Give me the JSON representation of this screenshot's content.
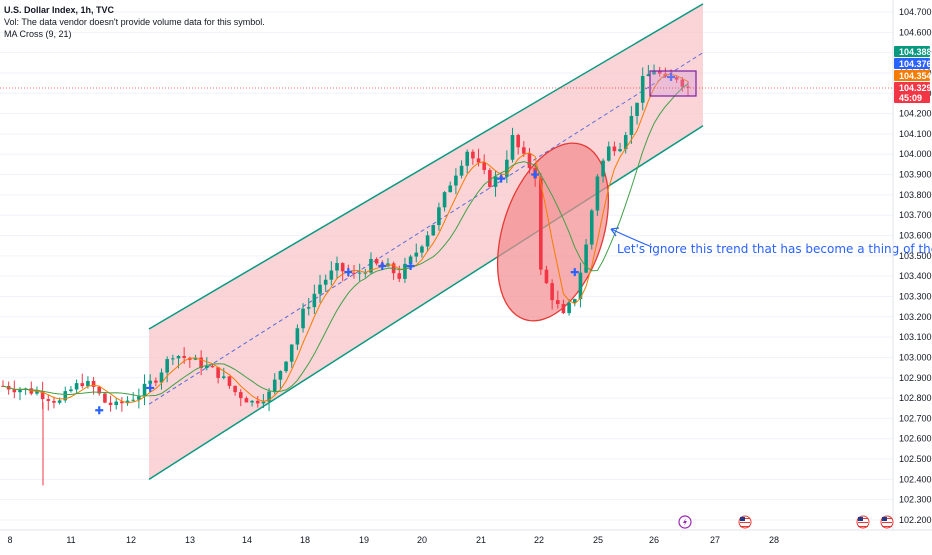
{
  "legend": {
    "symbol": "U.S. Dollar Index, 1h, TVC",
    "volume_note": "Vol: The data vendor doesn't provide volume data for this symbol.",
    "indicator": "MA Cross (9, 21)"
  },
  "colors": {
    "channel_fill": "#f8c6c9",
    "channel_line": "#089981",
    "ellipse_fill": "#f28b8e",
    "ellipse_stroke": "#e53935",
    "candle_up": "#089981",
    "candle_down": "#f23645",
    "ma_fast": "#f57c00",
    "ma_slow": "#43a047",
    "midline": "#5b6bd8",
    "cross": "#2962ff",
    "box": "#7b1fa2",
    "note": "#2962ff"
  },
  "chart_data": {
    "type": "candlestick",
    "ylim": [
      102.25,
      104.75
    ],
    "price_ticks": [
      "104.700",
      "104.600",
      "104.500",
      "104.400",
      "104.300",
      "104.200",
      "104.100",
      "104.000",
      "103.900",
      "103.800",
      "103.700",
      "103.600",
      "103.500",
      "103.400",
      "103.300",
      "103.200",
      "103.100",
      "103.000",
      "102.900",
      "102.800",
      "102.700",
      "102.600",
      "102.500",
      "102.400",
      "102.300",
      "102.200"
    ],
    "date_ticks": [
      "8",
      "11",
      "12",
      "13",
      "14",
      "18",
      "19",
      "20",
      "21",
      "22",
      "25",
      "26",
      "27",
      "28"
    ],
    "current_price_tags": [
      {
        "label": "104.388",
        "value": 104.388,
        "color": "#089981"
      },
      {
        "label": "104.376",
        "value": 104.376,
        "color": "#2962ff"
      },
      {
        "label": "104.354",
        "value": 104.354,
        "color": "#f57c00"
      },
      {
        "label": "104.329",
        "value": 104.329,
        "color": "#f23645"
      },
      {
        "label": "45:09",
        "value": 104.3,
        "color": "#f23645"
      }
    ],
    "key_path": [
      [
        0,
        102.86
      ],
      [
        6,
        102.83
      ],
      [
        10,
        102.78
      ],
      [
        12,
        102.84
      ],
      [
        14,
        102.88
      ],
      [
        16,
        102.85
      ],
      [
        18,
        102.78
      ],
      [
        20,
        102.76
      ],
      [
        24,
        102.82
      ],
      [
        27,
        102.9
      ],
      [
        30,
        103.02
      ],
      [
        34,
        102.98
      ],
      [
        38,
        102.92
      ],
      [
        41,
        102.83
      ],
      [
        44,
        102.78
      ],
      [
        47,
        102.82
      ],
      [
        50,
        103.0
      ],
      [
        53,
        103.22
      ],
      [
        56,
        103.36
      ],
      [
        59,
        103.44
      ],
      [
        62,
        103.4
      ],
      [
        65,
        103.46
      ],
      [
        68,
        103.44
      ],
      [
        70,
        103.4
      ],
      [
        73,
        103.52
      ],
      [
        76,
        103.66
      ],
      [
        79,
        103.86
      ],
      [
        82,
        104.02
      ],
      [
        84,
        103.94
      ],
      [
        86,
        103.86
      ],
      [
        88,
        103.9
      ],
      [
        90,
        104.08
      ],
      [
        92,
        103.98
      ],
      [
        94,
        103.9
      ],
      [
        95,
        103.42
      ],
      [
        97,
        103.3
      ],
      [
        99,
        103.2
      ],
      [
        101,
        103.3
      ],
      [
        103,
        103.55
      ],
      [
        105,
        103.9
      ],
      [
        107,
        104.03
      ],
      [
        109,
        104.05
      ],
      [
        111,
        104.18
      ],
      [
        113,
        104.36
      ],
      [
        115,
        104.42
      ],
      [
        117,
        104.36
      ],
      [
        119,
        104.38
      ],
      [
        121,
        104.33
      ]
    ],
    "crosses": [
      {
        "x": 17,
        "y": 102.74
      },
      {
        "x": 26,
        "y": 102.85
      },
      {
        "x": 61,
        "y": 103.42
      },
      {
        "x": 67,
        "y": 103.45
      },
      {
        "x": 72,
        "y": 103.45
      },
      {
        "x": 88,
        "y": 103.88
      },
      {
        "x": 94,
        "y": 103.9
      },
      {
        "x": 101,
        "y": 103.42
      },
      {
        "x": 118,
        "y": 104.38
      }
    ],
    "channel": {
      "upper": [
        [
          149,
          103.14
        ],
        [
          703,
          104.74
        ]
      ],
      "lower": [
        [
          149,
          102.4
        ],
        [
          703,
          104.14
        ]
      ],
      "mid": [
        [
          149,
          102.77
        ],
        [
          703,
          104.5
        ]
      ]
    }
  },
  "annotation": {
    "text": "Let's ignore this trend that has become a thing of the past"
  },
  "event_icons": [
    "lightning-icon",
    "us-flag-icon",
    "us-flag-icon",
    "us-flag-icon"
  ]
}
